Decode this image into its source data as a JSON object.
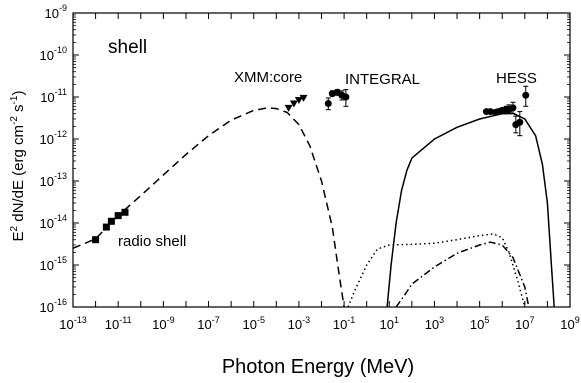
{
  "chart_data": {
    "type": "scatter",
    "title": "",
    "panel_label": "shell",
    "xlabel": "Photon Energy (MeV)",
    "ylabel_prefix": "E",
    "ylabel_sup1": "2",
    "ylabel_mid": " dN/dE (erg cm",
    "ylabel_sup2": "-2",
    "ylabel_mid2": " s",
    "ylabel_sup3": "-1",
    "ylabel_end": ")",
    "x_scale": "log",
    "y_scale": "log",
    "xlim": [
      1e-13,
      1000000000.0
    ],
    "ylim": [
      1e-16,
      1e-09
    ],
    "x_tick_exponents": [
      -13,
      -11,
      -9,
      -7,
      -5,
      -3,
      -1,
      1,
      3,
      5,
      7,
      9
    ],
    "y_tick_exponents": [
      -16,
      -15,
      -14,
      -13,
      -12,
      -11,
      -10,
      -9
    ],
    "tick_base": "10",
    "grid": false,
    "annotations": [
      {
        "text": "XMM:core",
        "x": 5e-05,
        "y": 1.2e-11
      },
      {
        "text": "INTEGRAL",
        "x": 0.3,
        "y": 1.2e-11
      },
      {
        "text": "HESS",
        "x": 400000.0,
        "y": 1.2e-11
      },
      {
        "text": "radio shell",
        "x": 1.2e-11,
        "y": 2.8e-15
      }
    ],
    "series": [
      {
        "type": "points",
        "marker": "square",
        "points": [
          [
            1e-12,
            4e-15
          ],
          [
            3e-12,
            8e-15
          ],
          [
            5e-12,
            1.1e-14
          ],
          [
            1e-11,
            1.5e-14
          ],
          [
            2e-11,
            1.8e-14
          ]
        ]
      },
      {
        "type": "points",
        "marker": "triangle-down",
        "points": [
          [
            0.00035,
            5.5e-12
          ],
          [
            0.0006,
            7e-12
          ],
          [
            0.001,
            8.5e-12
          ],
          [
            0.0016,
            9.5e-12
          ]
        ]
      },
      {
        "type": "points",
        "marker": "circle",
        "points": [
          [
            0.02,
            7e-12,
            5e-12,
            9.5e-12
          ],
          [
            0.03,
            1.2e-11,
            1.05e-11,
            1.4e-11
          ],
          [
            0.05,
            1.3e-11,
            1.1e-11,
            1.5e-11
          ],
          [
            0.08,
            1.1e-11,
            8.5e-12,
            1.4e-11
          ],
          [
            0.12,
            1e-11,
            6e-12,
            1.5e-11
          ]
        ]
      },
      {
        "type": "points",
        "marker": "circle",
        "points": [
          [
            200000.0,
            4.5e-12,
            4e-12,
            5e-12
          ],
          [
            300000.0,
            4.5e-12,
            4e-12,
            5e-12
          ],
          [
            500000.0,
            4.3e-12,
            3.8e-12,
            4.8e-12
          ],
          [
            700000.0,
            4.5e-12,
            4e-12,
            5.2e-12
          ],
          [
            1000000.0,
            4.8e-12,
            4e-12,
            5.5e-12
          ],
          [
            1500000.0,
            5e-12,
            4e-12,
            6e-12
          ],
          [
            2000000.0,
            5e-12,
            4e-12,
            6.5e-12
          ],
          [
            3000000.0,
            5.5e-12,
            4e-12,
            7.5e-12
          ],
          [
            4000000.0,
            2.2e-12,
            1.4e-12,
            3.5e-12
          ],
          [
            6000000.0,
            2.5e-12,
            1.2e-12,
            4.5e-12
          ],
          [
            11000000.0,
            1.1e-11,
            6e-12,
            1.8e-11
          ]
        ]
      },
      {
        "type": "line",
        "style": "dashed",
        "points": [
          [
            1e-13,
            2.5e-15
          ],
          [
            1e-12,
            4.2e-15
          ],
          [
            1e-11,
            1.5e-14
          ],
          [
            1e-10,
            4.5e-14
          ],
          [
            1e-09,
            1.4e-13
          ],
          [
            1e-08,
            4.3e-13
          ],
          [
            1e-07,
            1.2e-12
          ],
          [
            1e-06,
            2.8e-12
          ],
          [
            1e-05,
            4.8e-12
          ],
          [
            4e-05,
            5.5e-12
          ],
          [
            0.0001,
            5.3e-12
          ],
          [
            0.0003,
            4.3e-12
          ],
          [
            0.001,
            2.2e-12
          ],
          [
            0.003,
            7e-13
          ],
          [
            0.01,
            1e-13
          ],
          [
            0.03,
            8e-15
          ],
          [
            0.06,
            6e-16
          ],
          [
            0.1,
            1e-16
          ]
        ]
      },
      {
        "type": "line",
        "style": "solid",
        "points": [
          [
            8,
            1e-16
          ],
          [
            12,
            1e-15
          ],
          [
            20,
            1e-14
          ],
          [
            35,
            6e-14
          ],
          [
            60,
            1.8e-13
          ],
          [
            100,
            3.5e-13
          ],
          [
            1000.0,
            1e-12
          ],
          [
            10000.0,
            1.9e-12
          ],
          [
            100000.0,
            3e-12
          ],
          [
            1000000.0,
            4e-12
          ],
          [
            3000000.0,
            4.1e-12
          ],
          [
            10000000.0,
            3e-12
          ],
          [
            30000000.0,
            1.2e-12
          ],
          [
            60000000.0,
            2.5e-13
          ],
          [
            100000000.0,
            3e-14
          ],
          [
            150000000.0,
            1e-15
          ],
          [
            200000000.0,
            1e-16
          ]
        ]
      },
      {
        "type": "line",
        "style": "dotted",
        "points": [
          [
            0.15,
            1e-16
          ],
          [
            0.3,
            2.5e-16
          ],
          [
            1,
            1e-15
          ],
          [
            3,
            2.4e-15
          ],
          [
            10,
            3e-15
          ],
          [
            100,
            3.1e-15
          ],
          [
            1000.0,
            3.3e-15
          ],
          [
            10000.0,
            4e-15
          ],
          [
            100000.0,
            5e-15
          ],
          [
            400000.0,
            5.5e-15
          ],
          [
            1000000.0,
            4.5e-15
          ],
          [
            2000000.0,
            2e-15
          ],
          [
            5000000.0,
            4e-16
          ],
          [
            10000000.0,
            1e-16
          ]
        ]
      },
      {
        "type": "line",
        "style": "dashdot",
        "points": [
          [
            20,
            1e-16
          ],
          [
            50,
            2e-16
          ],
          [
            100,
            3.5e-16
          ],
          [
            1000.0,
            9e-16
          ],
          [
            10000.0,
            1.9e-15
          ],
          [
            100000.0,
            3e-15
          ],
          [
            300000.0,
            3.5e-15
          ],
          [
            1000000.0,
            3e-15
          ],
          [
            3000000.0,
            1.5e-15
          ],
          [
            10000000.0,
            3e-16
          ],
          [
            15000000.0,
            1e-16
          ]
        ]
      }
    ]
  }
}
